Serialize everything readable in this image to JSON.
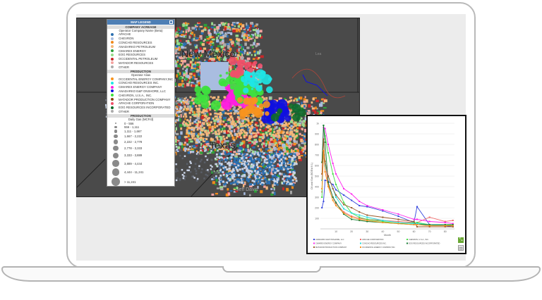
{
  "map": {
    "labels": {
      "state1": "New Mexico",
      "state2": "Texas",
      "county": "Jeff Davis",
      "county2": "Lea"
    },
    "legend": {
      "title": "MAP LEGEND",
      "acreage": {
        "section": "COMPANY ACREAGE",
        "subtitle": "Operator Company Name (Beta)",
        "items": [
          {
            "label": "APACHE",
            "color": "#2b6fb0"
          },
          {
            "label": "CHEVRON",
            "color": "#a9bde0"
          },
          {
            "label": "CONCHO RESOURCES",
            "color": "#f08a1c"
          },
          {
            "label": "ANADARKO PETROLEUM",
            "color": "#f4b77a"
          },
          {
            "label": "CIMAREX ENERGY",
            "color": "#2e9e3a"
          },
          {
            "label": "EOG RESOURCES",
            "color": "#98dc8c"
          },
          {
            "label": "OCCIDENTAL PETROLEUM",
            "color": "#c8282a"
          },
          {
            "label": "MATADOR RESOURCES",
            "color": "#f4a3a0"
          },
          {
            "label": "OTHER",
            "color": "#aaaaaa"
          }
        ]
      },
      "production": {
        "section": "PRODUCTION",
        "subtitle": "Operator Alias",
        "items": [
          {
            "label": "OCCIDENTAL ENERGY COMPANY,INC.",
            "color": "#f7931e"
          },
          {
            "label": "CONCHO RESOURCES INC.",
            "color": "#1ee6e6"
          },
          {
            "label": "CIMAREX ENERGY COMPANY",
            "color": "#ff1fe0"
          },
          {
            "label": "ANADARKO E&P ONSHORE, LLC",
            "color": "#1010e0"
          },
          {
            "label": "CHEVRON, U.S.A., INC.",
            "color": "#3ee03e"
          },
          {
            "label": "MATADOR PRODUCTION COMPANY",
            "color": "#8b4513"
          },
          {
            "label": "APACHE CORPORATION",
            "color": "#f0506a"
          },
          {
            "label": "EOG RESOURCES INCORPORATED",
            "color": "#0e6b2a"
          },
          {
            "label": "OTHER",
            "color": "#aaaaaa"
          }
        ]
      },
      "gas": {
        "section": "PRODUCTION",
        "subtitle": "Daily Gas (MCF/d)",
        "ranges": [
          "0 - 556",
          "556 - 1,111",
          "1,111 - 1,667",
          "1,667 - 2,222",
          "2,222 - 2,778",
          "2,778 - 3,333",
          "3,333 - 3,889",
          "3,889 - 4,444",
          "4,444 - 11,241",
          "> 11,241"
        ]
      }
    }
  },
  "chart_data": {
    "type": "line",
    "title": "",
    "xlabel": "Month",
    "ylabel": "Oil and Gas (BOE/d 6:1)",
    "xlim": [
      0,
      86
    ],
    "ylim": [
      0,
      1000
    ],
    "xticks": [
      "10",
      "20",
      "30",
      "40",
      "50",
      "60",
      "70",
      "80"
    ],
    "yticks": [
      "100",
      "200",
      "300",
      "400",
      "500",
      "600",
      "700",
      "800",
      "900",
      "1k"
    ],
    "grid": true,
    "legend_position": "bottom",
    "x": [
      1,
      2,
      3,
      5,
      8,
      10,
      15,
      20,
      25,
      30,
      40,
      50,
      60,
      62,
      70,
      80,
      85
    ],
    "series": [
      {
        "name": "ANADARKO E&P ONSHORE, LLC",
        "color": "#3344dd",
        "values": [
          200,
          260,
          460,
          450,
          420,
          370,
          320,
          270,
          220,
          210,
          170,
          120,
          60,
          210,
          40,
          30,
          20
        ]
      },
      {
        "name": "APACHE CORPORATION",
        "color": "#f06a6a",
        "values": [
          350,
          700,
          620,
          420,
          300,
          240,
          160,
          120,
          100,
          90,
          80,
          70,
          60,
          60,
          110,
          70,
          80
        ]
      },
      {
        "name": "CHEVRON, U.S.A., INC.",
        "color": "#44dd44",
        "values": [
          300,
          980,
          880,
          720,
          520,
          420,
          250,
          150,
          110,
          90,
          70,
          50,
          60,
          60,
          40,
          40,
          30
        ]
      },
      {
        "name": "CIMAREX ENERGY COMPANY",
        "color": "#ff22ee",
        "values": [
          460,
          960,
          950,
          800,
          620,
          520,
          380,
          330,
          260,
          220,
          180,
          140,
          90,
          90,
          70,
          60,
          50
        ]
      },
      {
        "name": "CONCHO RESOURCES INC.",
        "color": "#22dddd",
        "values": [
          460,
          700,
          600,
          500,
          380,
          300,
          190,
          150,
          130,
          110,
          80,
          60,
          50,
          50,
          40,
          30,
          30
        ]
      },
      {
        "name": "EOG RESOURCES INCORPORATED",
        "color": "#137a30",
        "values": [
          630,
          980,
          820,
          440,
          300,
          250,
          140,
          90,
          80,
          70,
          60,
          50,
          40,
          40,
          40,
          40,
          40
        ]
      },
      {
        "name": "MATADOR PRODUCTION COMPANY",
        "color": "#9b5a2a",
        "values": [
          520,
          850,
          640,
          500,
          380,
          320,
          230,
          200,
          160,
          130,
          110,
          90,
          70,
          20,
          20,
          20,
          20
        ]
      },
      {
        "name": "OCCIDENTAL ENERGY COMPANY,INC.",
        "color": "#f7931e",
        "values": [
          380,
          740,
          540,
          400,
          270,
          220,
          150,
          110,
          90,
          80,
          60,
          50,
          40,
          40,
          30,
          30,
          30
        ]
      }
    ]
  }
}
